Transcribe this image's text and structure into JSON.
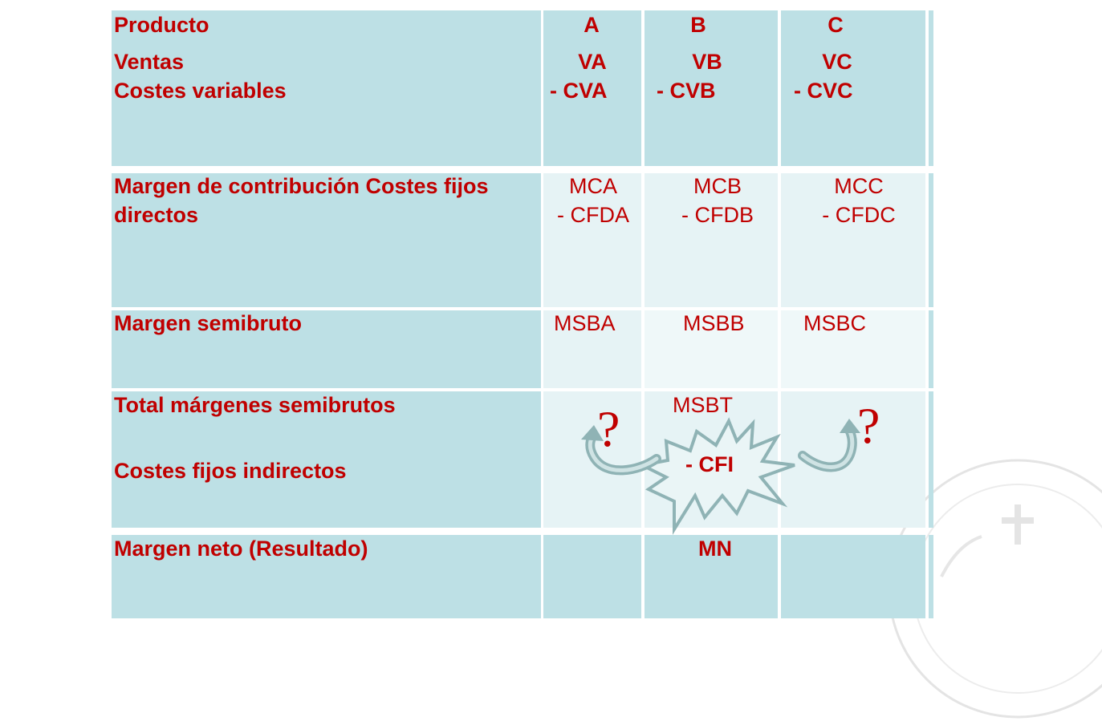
{
  "columns": [
    "A",
    "B",
    "C"
  ],
  "header": {
    "label": "Producto"
  },
  "rows": {
    "ventas": {
      "label_line1": "Ventas",
      "label_line2": "Costes variables",
      "values": [
        [
          "VA",
          "- CVA"
        ],
        [
          "VB",
          "- CVB"
        ],
        [
          "VC",
          "- CVC"
        ]
      ]
    },
    "margen_contribucion": {
      "label_line1": "Margen de contribución Costes fijos",
      "label_line2": "directos",
      "values": [
        [
          "MCA",
          "- CFDA"
        ],
        [
          "MCB",
          "- CFDB"
        ],
        [
          "MCC",
          "- CFDC"
        ]
      ]
    },
    "margen_semibruto": {
      "label": "Margen semibruto",
      "values": [
        "MSBA",
        "MSBB",
        "MSBC"
      ]
    },
    "total": {
      "label_line1": "Total márgenes semibrutos",
      "label_line2": "Costes fijos indirectos",
      "total_value": "MSBT",
      "cfi_value": "- CFI",
      "question_left": "?",
      "question_right": "?"
    },
    "margen_neto": {
      "label": "Margen neto (Resultado)",
      "value": "MN"
    }
  },
  "colors": {
    "text": "#c00000",
    "cell_dark": "#bde0e5",
    "cell_light": "#e6f3f5",
    "arrow": "#8fb3b5"
  }
}
